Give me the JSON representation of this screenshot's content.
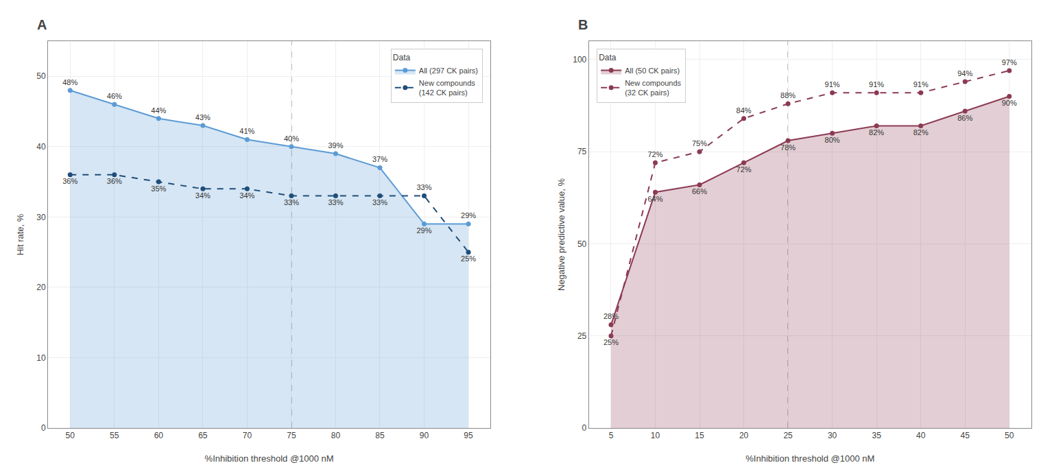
{
  "chart_data": [
    {
      "type": "line",
      "title": "A",
      "x": [
        50,
        55,
        60,
        65,
        70,
        75,
        80,
        85,
        90,
        95
      ],
      "xlabel": "%Inhibition threshold @1000 nM",
      "ylabel": "Hit rate, %",
      "xlim": [
        47.5,
        97.5
      ],
      "xticks": [
        50,
        55,
        60,
        65,
        70,
        75,
        80,
        85,
        90,
        95
      ],
      "ylim": [
        0,
        55
      ],
      "yticks": [
        0,
        10,
        20,
        30,
        40,
        50
      ],
      "grid": true,
      "legend": "upper right",
      "legend_title": "Data",
      "data_labels": true,
      "vline": 75,
      "series": [
        {
          "name": "All (297 CK pairs)",
          "type": "area",
          "color": "#5b9bd5",
          "marker": "circle",
          "line_style": "solid",
          "values": [
            48,
            46,
            44,
            43,
            41,
            40,
            39,
            37,
            29,
            29
          ],
          "value_labels": [
            "48%",
            "46%",
            "44%",
            "43%",
            "41%",
            "40%",
            "39%",
            "37%",
            "29%",
            "29%"
          ]
        },
        {
          "name": "New compounds\n(142 CK pairs)",
          "type": "line",
          "color": "#1f4e79",
          "marker": "circle",
          "line_style": "dashed",
          "values": [
            36,
            36,
            35,
            34,
            34,
            33,
            33,
            33,
            33,
            25
          ],
          "value_labels": [
            "36%",
            "36%",
            "35%",
            "34%",
            "34%",
            "33%",
            "33%",
            "33%",
            "33%",
            "25%"
          ]
        }
      ]
    },
    {
      "type": "line",
      "title": "B",
      "x": [
        5,
        10,
        15,
        20,
        25,
        30,
        35,
        40,
        45,
        50
      ],
      "xlabel": "%Inhibition threshold @1000 nM",
      "ylabel": "Negative predictive value, %",
      "xlim": [
        2.5,
        52.5
      ],
      "xticks": [
        5,
        10,
        15,
        20,
        25,
        30,
        35,
        40,
        45,
        50
      ],
      "ylim": [
        0,
        105
      ],
      "yticks": [
        0,
        25,
        50,
        75,
        100
      ],
      "grid": true,
      "legend": "upper left",
      "legend_title": "Data",
      "data_labels": true,
      "vline": 25,
      "series": [
        {
          "name": "All (50 CK pairs)",
          "type": "area",
          "color": "#8b3a52",
          "marker": "circle",
          "line_style": "solid",
          "values": [
            28,
            64,
            66,
            72,
            78,
            80,
            82,
            82,
            86,
            90
          ],
          "value_labels": [
            "28%",
            "64%",
            "66%",
            "72%",
            "78%",
            "80%",
            "82%",
            "82%",
            "86%",
            "90%"
          ]
        },
        {
          "name": "New compounds\n(32 CK pairs)",
          "type": "line",
          "color": "#8b3a52",
          "marker": "circle",
          "line_style": "dashed",
          "values": [
            25,
            72,
            75,
            84,
            88,
            91,
            91,
            91,
            94,
            97
          ],
          "value_labels": [
            "25%",
            "72%",
            "75%",
            "84%",
            "88%",
            "91%",
            "91%",
            "91%",
            "94%",
            "97%"
          ]
        }
      ]
    }
  ]
}
